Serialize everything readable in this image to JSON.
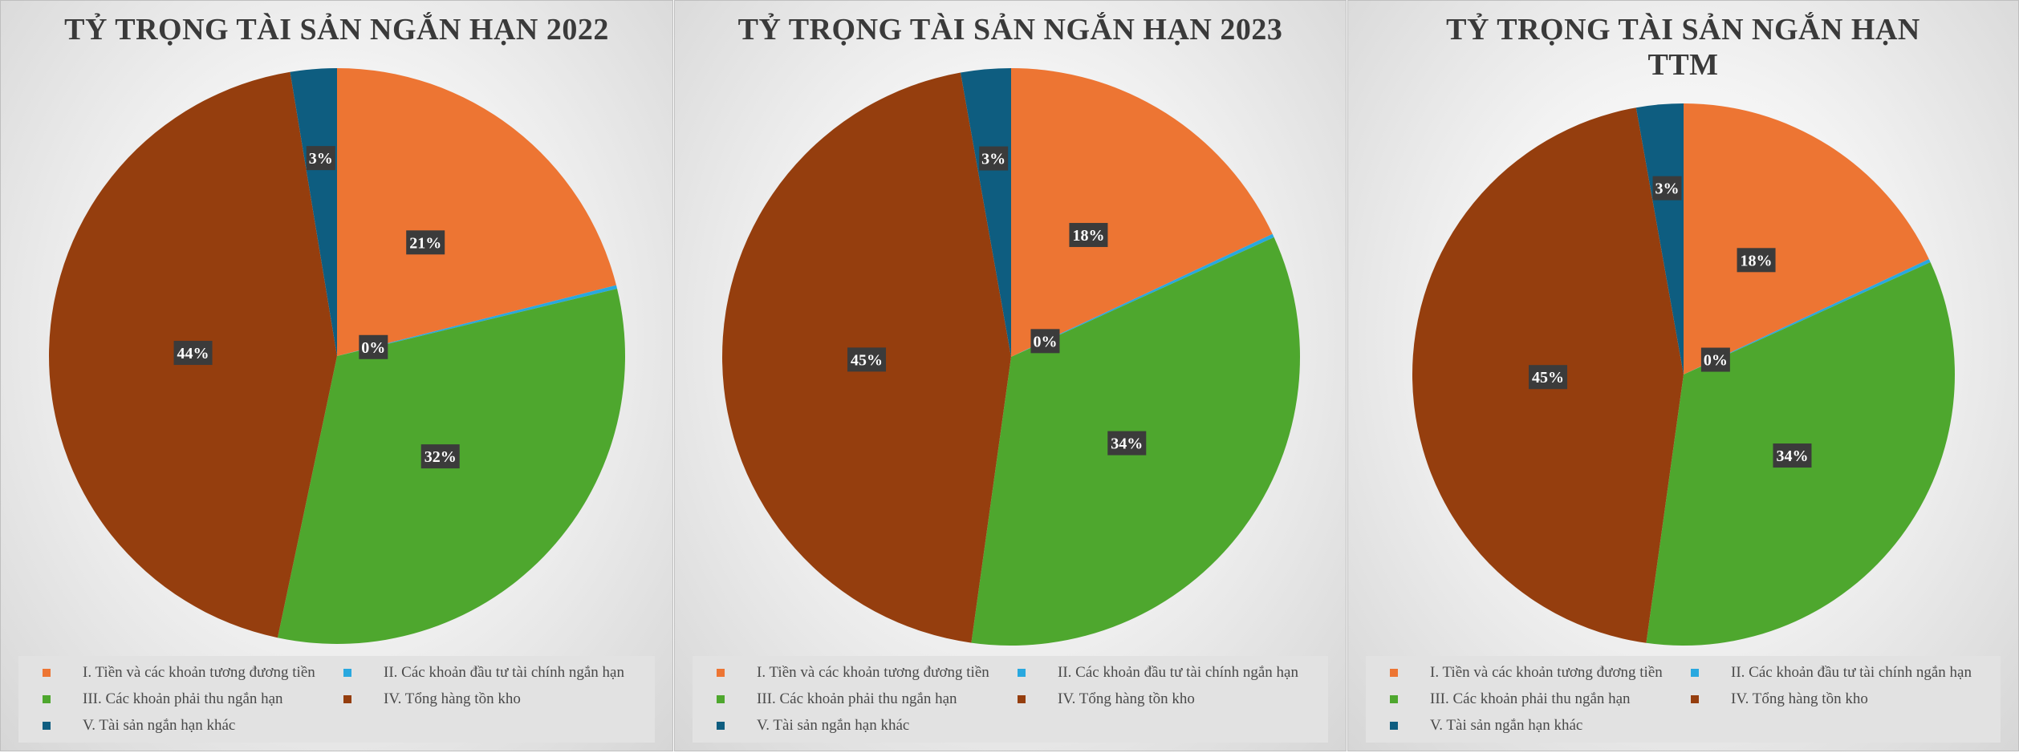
{
  "series_colors": [
    "#ED7533",
    "#29A8DF",
    "#4EA72E",
    "#953E0E",
    "#0E5D80"
  ],
  "legend_labels": [
    "I. Tiền và các khoản tương đương tiền",
    "II. Các khoản đầu tư tài chính ngắn hạn",
    "III. Các khoản phải thu ngắn hạn",
    "IV. Tổng hàng tồn kho",
    "V. Tài sản ngắn hạn khác"
  ],
  "chart_data": [
    {
      "type": "pie",
      "title": "TỶ TRỌNG TÀI SẢN NGẮN HẠN 2022",
      "categories": [
        "I. Tiền và các khoản tương đương tiền",
        "II. Các khoản đầu tư tài chính ngắn hạn",
        "III. Các khoản phải thu ngắn hạn",
        "IV. Tổng hàng tồn kho",
        "V. Tài sản ngắn hạn khác"
      ],
      "values": [
        21,
        0.2,
        32,
        44,
        2.6
      ],
      "data_labels": [
        "21%",
        "0%",
        "32%",
        "44%",
        "3%"
      ],
      "legend_position": "bottom"
    },
    {
      "type": "pie",
      "title": "TỶ TRỌNG TÀI SẢN NGẮN HẠN 2023",
      "categories": [
        "I. Tiền và các khoản tương đương tiền",
        "II. Các khoản đầu tư tài chính ngắn hạn",
        "III. Các khoản phải thu ngắn hạn",
        "IV. Tổng hàng tồn kho",
        "V. Tài sản ngắn hạn khác"
      ],
      "values": [
        18,
        0.2,
        34,
        45,
        2.8
      ],
      "data_labels": [
        "18%",
        "0%",
        "34%",
        "45%",
        "3%"
      ],
      "legend_position": "bottom"
    },
    {
      "type": "pie",
      "title": "TỶ TRỌNG TÀI SẢN NGẮN HẠN TTM",
      "categories": [
        "I. Tiền và các khoản tương đương tiền",
        "II. Các khoản đầu tư tài chính ngắn hạn",
        "III. Các khoản phải thu ngắn hạn",
        "IV. Tổng hàng tồn kho",
        "V. Tài sản ngắn hạn khác"
      ],
      "values": [
        18,
        0.2,
        34,
        45,
        2.8
      ],
      "data_labels": [
        "18%",
        "0%",
        "34%",
        "45%",
        "3%"
      ],
      "legend_position": "bottom"
    }
  ]
}
